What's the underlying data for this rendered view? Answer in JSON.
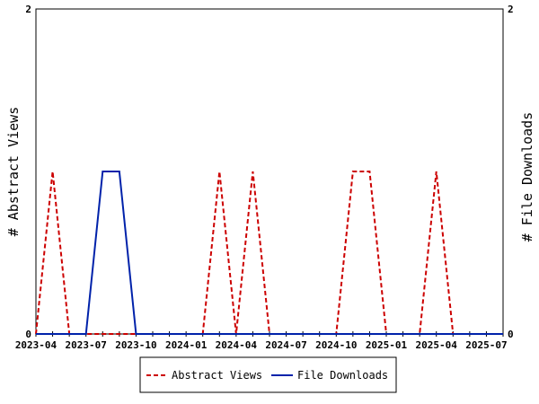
{
  "chart_data": {
    "type": "line",
    "title": "",
    "y_left_label": "# Abstract Views",
    "y_right_label": "# File Downloads",
    "x_ticks": [
      "2023-04",
      "2023-07",
      "2023-10",
      "2024-01",
      "2024-04",
      "2024-07",
      "2024-10",
      "2025-01",
      "2025-04",
      "2025-07"
    ],
    "y_left_ticks": [
      "0",
      "2"
    ],
    "y_right_ticks": [
      "0",
      "2"
    ],
    "ylim": [
      0,
      2
    ],
    "grid": false,
    "legend_position": "bottom",
    "x": [
      "2023-04",
      "2023-05",
      "2023-06",
      "2023-07",
      "2023-08",
      "2023-09",
      "2023-10",
      "2023-11",
      "2023-12",
      "2024-01",
      "2024-02",
      "2024-03",
      "2024-04",
      "2024-05",
      "2024-06",
      "2024-07",
      "2024-08",
      "2024-09",
      "2024-10",
      "2024-11",
      "2024-12",
      "2025-01",
      "2025-02",
      "2025-03",
      "2025-04",
      "2025-05",
      "2025-06",
      "2025-07",
      "2025-08"
    ],
    "series": [
      {
        "name": "Abstract Views",
        "color": "#cc0000",
        "style": "dashed",
        "axis": "left",
        "values": [
          0,
          1,
          0,
          0,
          0,
          0,
          0,
          0,
          0,
          0,
          0,
          1,
          0,
          1,
          0,
          0,
          0,
          0,
          0,
          1,
          1,
          0,
          0,
          0,
          1,
          0,
          0,
          0,
          0
        ]
      },
      {
        "name": "File Downloads",
        "color": "#0022aa",
        "style": "solid",
        "axis": "right",
        "values": [
          0,
          0,
          0,
          0,
          1,
          1,
          0,
          0,
          0,
          0,
          0,
          0,
          0,
          0,
          0,
          0,
          0,
          0,
          0,
          0,
          0,
          0,
          0,
          0,
          0,
          0,
          0,
          0,
          0
        ]
      }
    ]
  }
}
